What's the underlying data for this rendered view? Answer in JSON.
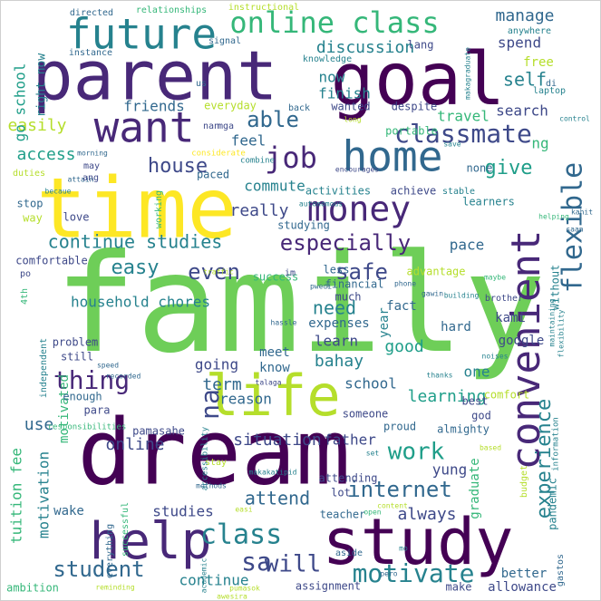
{
  "colors": {
    "background": "#ffffff",
    "palette": [
      "#440154",
      "#482878",
      "#3e4989",
      "#31688e",
      "#26828e",
      "#1f9e89",
      "#35b779",
      "#6ece58",
      "#b5de2b",
      "#fde725"
    ]
  },
  "words": [
    {
      "text": "family",
      "color": "#6ece58"
    },
    {
      "text": "dream",
      "color": "#440154"
    },
    {
      "text": "time",
      "color": "#fde725"
    },
    {
      "text": "parent",
      "color": "#482878"
    },
    {
      "text": "goal",
      "color": "#440154"
    },
    {
      "text": "study",
      "color": "#440154"
    },
    {
      "text": "life",
      "color": "#b5de2b"
    },
    {
      "text": "help",
      "color": "#482878"
    },
    {
      "text": "convenient",
      "color": "#482878"
    },
    {
      "text": "future",
      "color": "#26828e"
    },
    {
      "text": "want",
      "color": "#482878"
    },
    {
      "text": "home",
      "color": "#31688e"
    },
    {
      "text": "money",
      "color": "#482878"
    },
    {
      "text": "online class",
      "color": "#35b779"
    },
    {
      "text": "classmate",
      "color": "#3e4989"
    },
    {
      "text": "job",
      "color": "#482878"
    },
    {
      "text": "flexible",
      "color": "#31688e"
    },
    {
      "text": "experience",
      "color": "#26828e"
    },
    {
      "text": "especially",
      "color": "#482878"
    },
    {
      "text": "thing",
      "color": "#482878"
    },
    {
      "text": "na",
      "color": "#3e4989"
    },
    {
      "text": "class",
      "color": "#26828e"
    },
    {
      "text": "work",
      "color": "#1f9e89"
    },
    {
      "text": "motivate",
      "color": "#26828e"
    },
    {
      "text": "internet",
      "color": "#31688e"
    },
    {
      "text": "sa",
      "color": "#3e4989"
    },
    {
      "text": "will",
      "color": "#3e4989"
    },
    {
      "text": "student",
      "color": "#31688e"
    },
    {
      "text": "able",
      "color": "#31688e"
    },
    {
      "text": "house",
      "color": "#3e4989"
    },
    {
      "text": "give",
      "color": "#1f9e89"
    },
    {
      "text": "continue studies",
      "color": "#26828e"
    },
    {
      "text": "easy",
      "color": "#26828e"
    },
    {
      "text": "even",
      "color": "#3e4989"
    },
    {
      "text": "safe",
      "color": "#3e4989"
    },
    {
      "text": "need",
      "color": "#26828e"
    },
    {
      "text": "manage",
      "color": "#31688e"
    },
    {
      "text": "discussion",
      "color": "#26828e"
    },
    {
      "text": "self",
      "color": "#26828e"
    },
    {
      "text": "access",
      "color": "#1f9e89"
    },
    {
      "text": "easily",
      "color": "#b5de2b"
    },
    {
      "text": "feel",
      "color": "#31688e"
    },
    {
      "text": "really",
      "color": "#3e4989"
    },
    {
      "text": "commute",
      "color": "#26828e"
    },
    {
      "text": "now",
      "color": "#26828e"
    },
    {
      "text": "finish",
      "color": "#26828e"
    },
    {
      "text": "friends",
      "color": "#31688e"
    },
    {
      "text": "go school",
      "color": "#1f9e89"
    },
    {
      "text": "right now",
      "color": "#26828e"
    },
    {
      "text": "travel",
      "color": "#35b779"
    },
    {
      "text": "search",
      "color": "#3e4989"
    },
    {
      "text": "spend",
      "color": "#3e4989"
    },
    {
      "text": "free",
      "color": "#b5de2b"
    },
    {
      "text": "ng",
      "color": "#35b779"
    },
    {
      "text": "pace",
      "color": "#31688e"
    },
    {
      "text": "learn",
      "color": "#3e4989"
    },
    {
      "text": "good",
      "color": "#1f9e89"
    },
    {
      "text": "bahay",
      "color": "#26828e"
    },
    {
      "text": "learning",
      "color": "#1f9e89"
    },
    {
      "text": "term",
      "color": "#31688e"
    },
    {
      "text": "reason",
      "color": "#31688e"
    },
    {
      "text": "online",
      "color": "#3e4989"
    },
    {
      "text": "situation",
      "color": "#3e4989"
    },
    {
      "text": "father",
      "color": "#3e4989"
    },
    {
      "text": "school",
      "color": "#31688e"
    },
    {
      "text": "one",
      "color": "#26828e"
    },
    {
      "text": "use",
      "color": "#31688e"
    },
    {
      "text": "going",
      "color": "#3e4989"
    },
    {
      "text": "attend",
      "color": "#31688e"
    },
    {
      "text": "always",
      "color": "#3e4989"
    },
    {
      "text": "graduate",
      "color": "#35b779"
    },
    {
      "text": "yung",
      "color": "#3e4989"
    },
    {
      "text": "studies",
      "color": "#3e4989"
    },
    {
      "text": "continue",
      "color": "#26828e"
    },
    {
      "text": "better",
      "color": "#31688e"
    },
    {
      "text": "allowance",
      "color": "#3e4989"
    },
    {
      "text": "tuition fee",
      "color": "#35b779"
    },
    {
      "text": "motivation",
      "color": "#26828e"
    },
    {
      "text": "motivated",
      "color": "#35b779"
    },
    {
      "text": "household chores",
      "color": "#26828e"
    },
    {
      "text": "year",
      "color": "#26828e"
    },
    {
      "text": "fact",
      "color": "#31688e"
    },
    {
      "text": "expenses",
      "color": "#31688e"
    },
    {
      "text": "meet",
      "color": "#31688e"
    },
    {
      "text": "know",
      "color": "#31688e"
    },
    {
      "text": "hard",
      "color": "#31688e"
    },
    {
      "text": "kami",
      "color": "#3e4989"
    },
    {
      "text": "google",
      "color": "#3e4989"
    },
    {
      "text": "pandemic",
      "color": "#26828e"
    },
    {
      "text": "almighty",
      "color": "#31688e"
    },
    {
      "text": "god",
      "color": "#3e4989"
    },
    {
      "text": "best",
      "color": "#3e4989"
    },
    {
      "text": "comfort",
      "color": "#b5de2b"
    },
    {
      "text": "proud",
      "color": "#31688e"
    },
    {
      "text": "someone",
      "color": "#3e4989"
    },
    {
      "text": "attending",
      "color": "#3e4989"
    },
    {
      "text": "lot",
      "color": "#3e4989"
    },
    {
      "text": "teacher",
      "color": "#31688e"
    },
    {
      "text": "wake",
      "color": "#31688e"
    },
    {
      "text": "successful",
      "color": "#35b779"
    },
    {
      "text": "everything",
      "color": "#31688e"
    },
    {
      "text": "assignment",
      "color": "#3e4989"
    },
    {
      "text": "make",
      "color": "#3e4989"
    },
    {
      "text": "ambition",
      "color": "#35b779"
    },
    {
      "text": "para",
      "color": "#3e4989"
    },
    {
      "text": "enough",
      "color": "#31688e"
    },
    {
      "text": "still",
      "color": "#3e4989"
    },
    {
      "text": "problem",
      "color": "#3e4989"
    },
    {
      "text": "independent",
      "color": "#26828e"
    },
    {
      "text": "stay",
      "color": "#b5de2b"
    },
    {
      "text": "pamasahe",
      "color": "#3e4989"
    },
    {
      "text": "responsibilities",
      "color": "#35b779"
    },
    {
      "text": "success",
      "color": "#35b779"
    },
    {
      "text": "comfortable",
      "color": "#3e4989"
    },
    {
      "text": "love",
      "color": "#3e4989"
    },
    {
      "text": "way",
      "color": "#b5de2b"
    },
    {
      "text": "stop",
      "color": "#31688e"
    },
    {
      "text": "working",
      "color": "#35b779"
    },
    {
      "text": "studying",
      "color": "#31688e"
    },
    {
      "text": "activities",
      "color": "#26828e"
    },
    {
      "text": "achieve",
      "color": "#3e4989"
    },
    {
      "text": "advantage",
      "color": "#b5de2b"
    },
    {
      "text": "financial",
      "color": "#31688e"
    },
    {
      "text": "much",
      "color": "#3e4989"
    },
    {
      "text": "less",
      "color": "#31688e"
    },
    {
      "text": "paced",
      "color": "#31688e"
    },
    {
      "text": "everyday",
      "color": "#b5de2b"
    },
    {
      "text": "wanted",
      "color": "#3e4989"
    },
    {
      "text": "despite",
      "color": "#3e4989"
    },
    {
      "text": "portable",
      "color": "#35b779"
    },
    {
      "text": "none",
      "color": "#31688e"
    },
    {
      "text": "learners",
      "color": "#26828e"
    },
    {
      "text": "stable",
      "color": "#26828e"
    },
    {
      "text": "without",
      "color": "#26828e"
    },
    {
      "text": "knowledge",
      "color": "#26828e"
    },
    {
      "text": "lang",
      "color": "#3e4989"
    },
    {
      "text": "relationships",
      "color": "#35b779"
    },
    {
      "text": "directed",
      "color": "#31688e"
    },
    {
      "text": "instructional",
      "color": "#b5de2b"
    },
    {
      "text": "anywhere",
      "color": "#26828e"
    },
    {
      "text": "signal",
      "color": "#31688e"
    },
    {
      "text": "instance",
      "color": "#31688e"
    },
    {
      "text": "makagraduate",
      "color": "#26828e"
    },
    {
      "text": "laptop",
      "color": "#26828e"
    },
    {
      "text": "di",
      "color": "#31688e"
    },
    {
      "text": "us",
      "color": "#31688e"
    },
    {
      "text": "nan",
      "color": "#3e4989"
    },
    {
      "text": "mga",
      "color": "#3e4989"
    },
    {
      "text": "back",
      "color": "#31688e"
    },
    {
      "text": "save",
      "color": "#26828e"
    },
    {
      "text": "control",
      "color": "#26828e"
    },
    {
      "text": "long",
      "color": "#b5de2b"
    },
    {
      "text": "duties",
      "color": "#b5de2b"
    },
    {
      "text": "considerate",
      "color": "#fde725"
    },
    {
      "text": "combine",
      "color": "#26828e"
    },
    {
      "text": "morning",
      "color": "#31688e"
    },
    {
      "text": "attain",
      "color": "#31688e"
    },
    {
      "text": "encourages",
      "color": "#3e4989"
    },
    {
      "text": "may",
      "color": "#3e4989"
    },
    {
      "text": "ang",
      "color": "#3e4989"
    },
    {
      "text": "autonomous",
      "color": "#26828e"
    },
    {
      "text": "becaue",
      "color": "#26828e"
    },
    {
      "text": "kahit",
      "color": "#31688e"
    },
    {
      "text": "saan",
      "color": "#31688e"
    },
    {
      "text": "helping",
      "color": "#35b779"
    },
    {
      "text": "traffic",
      "color": "#b5de2b"
    },
    {
      "text": "im",
      "color": "#3e4989"
    },
    {
      "text": "pwedi",
      "color": "#31688e"
    },
    {
      "text": "phone",
      "color": "#31688e"
    },
    {
      "text": "gawin",
      "color": "#31688e"
    },
    {
      "text": "building",
      "color": "#26828e"
    },
    {
      "text": "brother",
      "color": "#3e4989"
    },
    {
      "text": "maintaining",
      "color": "#26828e"
    },
    {
      "text": "flexibility",
      "color": "#26828e"
    },
    {
      "text": "maybe",
      "color": "#35b779"
    },
    {
      "text": "po",
      "color": "#3e4989"
    },
    {
      "text": "4th",
      "color": "#35b779"
    },
    {
      "text": "speed",
      "color": "#31688e"
    },
    {
      "text": "hassle",
      "color": "#31688e"
    },
    {
      "text": "accessibility",
      "color": "#26828e"
    },
    {
      "text": "thanks",
      "color": "#26828e"
    },
    {
      "text": "noises",
      "color": "#26828e"
    },
    {
      "text": "recorded",
      "color": "#31688e"
    },
    {
      "text": "talaga",
      "color": "#3e4989"
    },
    {
      "text": "methods",
      "color": "#31688e"
    },
    {
      "text": "based",
      "color": "#b5de2b"
    },
    {
      "text": "budget",
      "color": "#b5de2b"
    },
    {
      "text": "information",
      "color": "#26828e"
    },
    {
      "text": "set",
      "color": "#26828e"
    },
    {
      "text": "makakatipid",
      "color": "#26828e"
    },
    {
      "text": "easi",
      "color": "#b5de2b"
    },
    {
      "text": "content",
      "color": "#b5de2b"
    },
    {
      "text": "gastos",
      "color": "#31688e"
    },
    {
      "text": "aside",
      "color": "#31688e"
    },
    {
      "text": "mo",
      "color": "#26828e"
    },
    {
      "text": "pero",
      "color": "#31688e"
    },
    {
      "text": "academic",
      "color": "#26828e"
    },
    {
      "text": "reminding",
      "color": "#b5de2b"
    },
    {
      "text": "pumasok",
      "color": "#b5de2b"
    },
    {
      "text": "awesira",
      "color": "#b5de2b"
    },
    {
      "text": "open",
      "color": "#35b779"
    }
  ]
}
